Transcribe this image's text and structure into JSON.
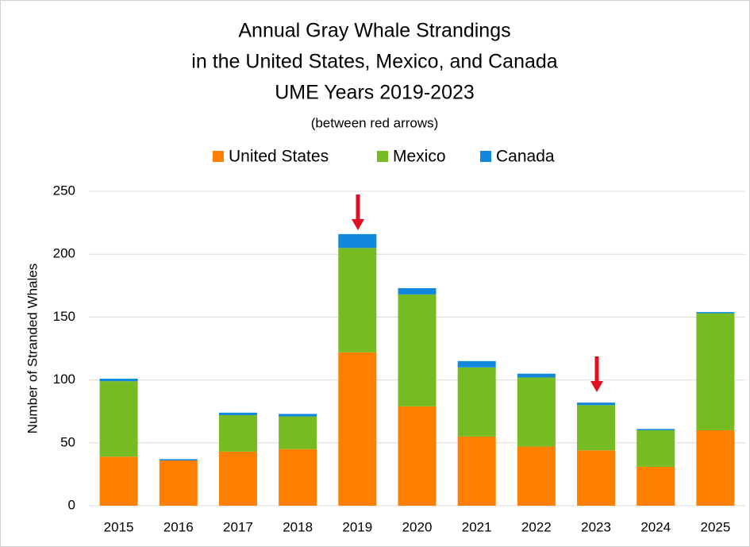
{
  "chart_data": {
    "type": "stacked_bar",
    "title": [
      "Annual Gray Whale Strandings",
      "in the United States, Mexico, and Canada",
      "UME Years 2019-2023"
    ],
    "subtitle": "(between red arrows)",
    "y_label": "Number of Stranded Whales",
    "categories": [
      "2015",
      "2016",
      "2017",
      "2018",
      "2019",
      "2020",
      "2021",
      "2022",
      "2023",
      "2024",
      "2025"
    ],
    "series": [
      {
        "name": "United States",
        "color": "#ff8000",
        "values": [
          39,
          36,
          43,
          45,
          122,
          79,
          55,
          47,
          44,
          31,
          60
        ]
      },
      {
        "name": "Mexico",
        "color": "#77bb22",
        "values": [
          60,
          0,
          29,
          26,
          83,
          89,
          55,
          55,
          36,
          29,
          93
        ]
      },
      {
        "name": "Canada",
        "color": "#1188dd",
        "values": [
          2,
          1,
          2,
          2,
          11,
          5,
          5,
          3,
          2,
          1,
          1
        ]
      }
    ],
    "ylim": [
      0,
      250
    ],
    "yticks": [
      0,
      50,
      100,
      150,
      200,
      250
    ],
    "grid": true
  }
}
